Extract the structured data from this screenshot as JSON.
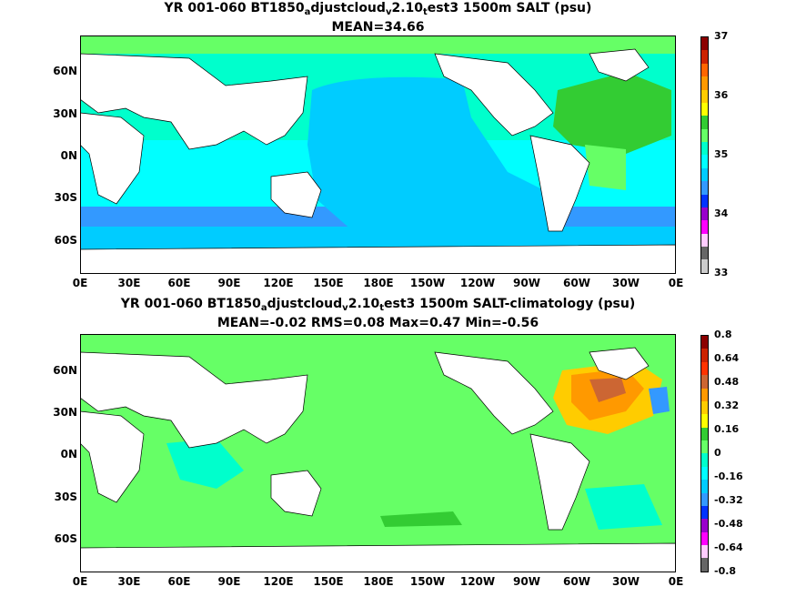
{
  "top_panel": {
    "title_parts": [
      "YR 001-060 BT1850",
      "a",
      "djustcloud",
      "v",
      "2.10",
      "t",
      "est3 1500m SALT (psu)"
    ],
    "stats": "MEAN=34.66",
    "colorbar_labels": [
      "37",
      "36",
      "35",
      "34",
      "33"
    ],
    "colorbar_colors": [
      "#8b0000",
      "#cc2200",
      "#ff6600",
      "#ff9900",
      "#ffcc00",
      "#ffff00",
      "#33cc33",
      "#66ff66",
      "#00ffcc",
      "#00ffff",
      "#00ccff",
      "#3399ff",
      "#0033ff",
      "#9900cc",
      "#ff00ff",
      "#ffccff",
      "#666666",
      "#cccccc"
    ]
  },
  "bottom_panel": {
    "title_parts": [
      "YR 001-060 BT1850",
      "a",
      "djustcloud",
      "v",
      "2.10",
      "t",
      "est3 1500m SALT-climatology (psu)"
    ],
    "stats": "MEAN=-0.02   RMS=0.08   Max=0.47   Min=-0.56",
    "colorbar_labels": [
      "0.8",
      "0.64",
      "0.48",
      "0.32",
      "0.16",
      "0",
      "-0.16",
      "-0.32",
      "-0.48",
      "-0.64",
      "-0.8"
    ],
    "colorbar_colors": [
      "#8b0000",
      "#cc2200",
      "#ff3300",
      "#cc6633",
      "#ff9900",
      "#ffcc00",
      "#ffff00",
      "#33cc33",
      "#66ff66",
      "#00ffcc",
      "#00ffff",
      "#00ccff",
      "#3399ff",
      "#0033ff",
      "#9900cc",
      "#ff00ff",
      "#ffccff",
      "#666666"
    ]
  },
  "lon_labels": [
    "0E",
    "30E",
    "60E",
    "90E",
    "120E",
    "150E",
    "180E",
    "150W",
    "120W",
    "90W",
    "60W",
    "30W",
    "0E"
  ],
  "lat_labels": [
    "60N",
    "30N",
    "0N",
    "30S",
    "60S"
  ],
  "colors": {
    "pacific_fresh": "#00ccff",
    "southern_band": "#3399ff",
    "atlantic_salty": "#33cc33",
    "anomaly_zero": "#66ff66",
    "land": "#ffffff"
  }
}
